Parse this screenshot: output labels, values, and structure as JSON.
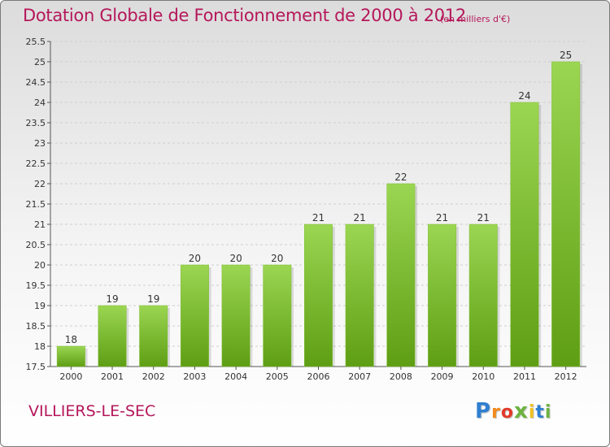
{
  "title": "Dotation Globale de Fonctionnement de 2000 à 2012",
  "subtitle": "(en milliers d'€)",
  "commune": "VILLIERS-LE-SEC",
  "logo": {
    "text": "Proxiti",
    "colors": [
      "#2f7fd1",
      "#f28a1c",
      "#e23a2a",
      "#6db33f",
      "#f2c21c",
      "#2f7fd1",
      "#6db33f"
    ]
  },
  "colors": {
    "bar_top": "#9bd652",
    "bar_bottom": "#5e9e14",
    "title": "#b5175a"
  },
  "chart_data": {
    "type": "bar",
    "categories": [
      "2000",
      "2001",
      "2002",
      "2003",
      "2004",
      "2005",
      "2006",
      "2007",
      "2008",
      "2009",
      "2010",
      "2011",
      "2012"
    ],
    "values": [
      18,
      19,
      19,
      20,
      20,
      20,
      21,
      21,
      22,
      21,
      21,
      24,
      25
    ],
    "ylim": [
      17.5,
      25.5
    ],
    "yticks": [
      "17.5",
      "18",
      "18.5",
      "19",
      "19.5",
      "20",
      "20.5",
      "21",
      "21.5",
      "22",
      "22.5",
      "23",
      "23.5",
      "24",
      "24.5",
      "25",
      "25.5"
    ],
    "grid": true,
    "legend": false
  }
}
